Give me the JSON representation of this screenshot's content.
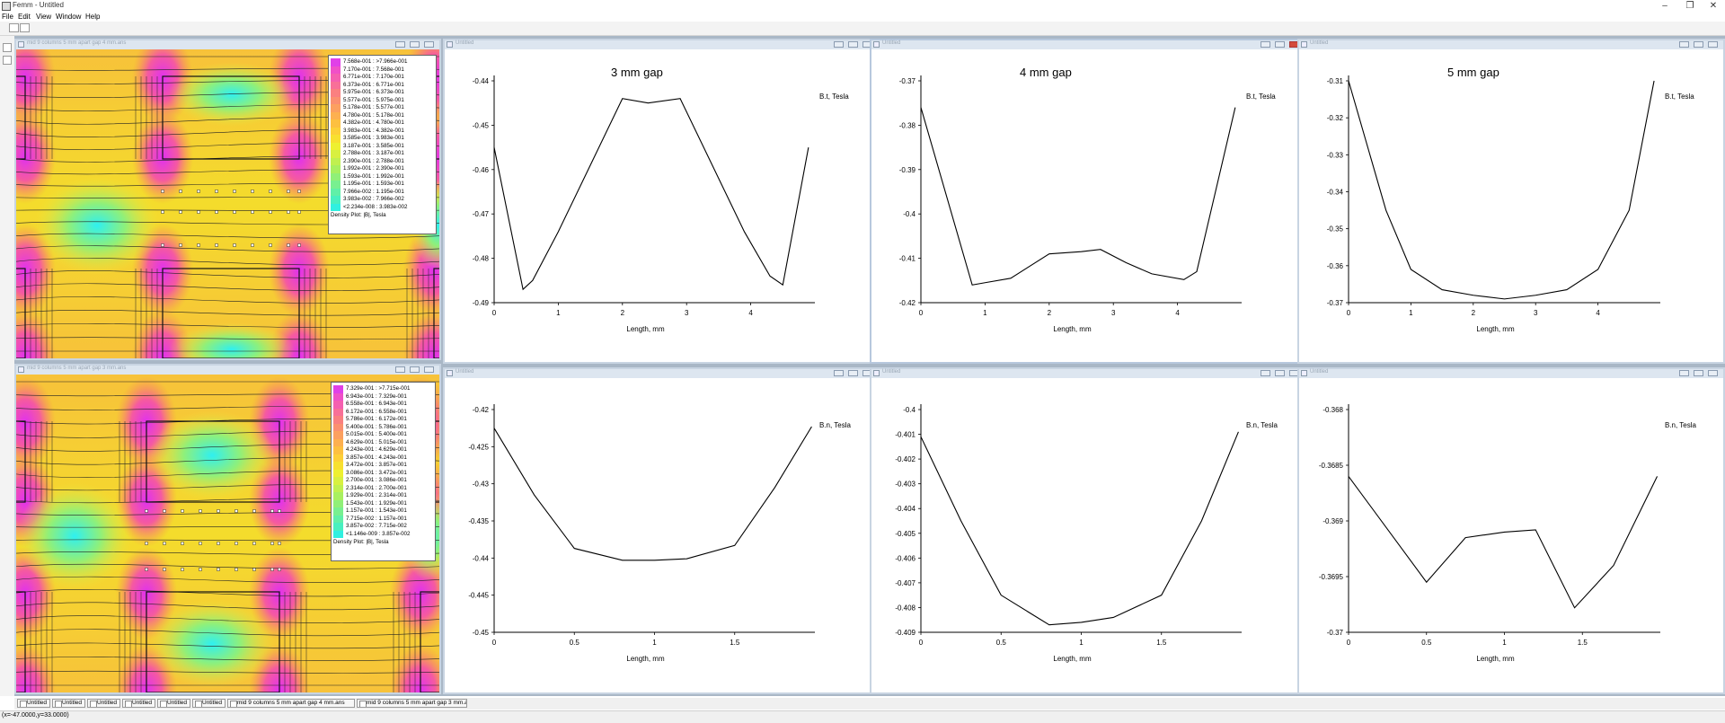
{
  "app": {
    "title": "Femm - Untitled"
  },
  "window_controls": {
    "minimize": "–",
    "maximize": "❐",
    "close": "✕"
  },
  "menu": [
    {
      "id": "file",
      "label": "File"
    },
    {
      "id": "edit",
      "label": "Edit"
    },
    {
      "id": "view",
      "label": "View"
    },
    {
      "id": "window",
      "label": "Window"
    },
    {
      "id": "help",
      "label": "Help"
    }
  ],
  "field_windows": [
    {
      "title": "mid 9 columns 5 mm apart gap 4 mm.ans",
      "legend": {
        "colors": [
          "#e040e8",
          "#f050c8",
          "#f560b0",
          "#f87098",
          "#fa8080",
          "#fb9070",
          "#fca060",
          "#fdb050",
          "#fdc040",
          "#fdd038",
          "#f8e030",
          "#eef030",
          "#d8f040",
          "#c0f050",
          "#a8f060",
          "#90f078",
          "#78f090",
          "#60f0a8",
          "#48f0c0",
          "#30f0e0"
        ],
        "entries": [
          "7.568e-001 : >7.966e-001",
          "7.170e-001 : 7.568e-001",
          "6.771e-001 : 7.170e-001",
          "6.373e-001 : 6.771e-001",
          "5.975e-001 : 6.373e-001",
          "5.577e-001 : 5.975e-001",
          "5.178e-001 : 5.577e-001",
          "4.780e-001 : 5.178e-001",
          "4.382e-001 : 4.780e-001",
          "3.983e-001 : 4.382e-001",
          "3.585e-001 : 3.983e-001",
          "3.187e-001 : 3.585e-001",
          "2.788e-001 : 3.187e-001",
          "2.390e-001 : 2.788e-001",
          "1.992e-001 : 2.390e-001",
          "1.593e-001 : 1.992e-001",
          "1.195e-001 : 1.593e-001",
          "7.966e-002 : 1.195e-001",
          "3.983e-002 : 7.966e-002",
          "<2.234e-008 : 3.983e-002"
        ],
        "title": "Density Plot: |B|, Tesla"
      }
    },
    {
      "title": "mid 9 columns 5 mm apart gap 3 mm.ans",
      "legend": {
        "colors": [
          "#e040e8",
          "#f050c8",
          "#f560b0",
          "#f87098",
          "#fa8080",
          "#fb9070",
          "#fca060",
          "#fdb050",
          "#fdc040",
          "#fdd038",
          "#f8e030",
          "#eef030",
          "#d8f040",
          "#c0f050",
          "#a8f060",
          "#90f078",
          "#78f090",
          "#60f0a8",
          "#48f0c0",
          "#30f0e0"
        ],
        "entries": [
          "7.329e-001 : >7.715e-001",
          "6.943e-001 : 7.329e-001",
          "6.558e-001 : 6.943e-001",
          "6.172e-001 : 6.558e-001",
          "5.786e-001 : 6.172e-001",
          "5.400e-001 : 5.786e-001",
          "5.015e-001 : 5.400e-001",
          "4.629e-001 : 5.015e-001",
          "4.243e-001 : 4.629e-001",
          "3.857e-001 : 4.243e-001",
          "3.472e-001 : 3.857e-001",
          "3.086e-001 : 3.472e-001",
          "2.700e-001 : 3.086e-001",
          "2.314e-001 : 2.700e-001",
          "1.929e-001 : 2.314e-001",
          "1.543e-001 : 1.929e-001",
          "1.157e-001 : 1.543e-001",
          "7.715e-002 : 1.157e-001",
          "3.857e-002 : 7.715e-002",
          "<1.146e-009 : 3.857e-002"
        ],
        "title": "Density Plot: |B|, Tesla"
      }
    }
  ],
  "plot_windows": [
    {
      "title": "Untitled",
      "gap_label": "3 mm gap",
      "ylabel": "B.t, Tesla",
      "xlabel": "Length, mm"
    },
    {
      "title": "Untitled",
      "gap_label": "4 mm gap",
      "ylabel": "B.t, Tesla",
      "xlabel": "Length, mm"
    },
    {
      "title": "Untitled",
      "gap_label": "5 mm gap",
      "ylabel": "B.t, Tesla",
      "xlabel": "Length, mm"
    },
    {
      "title": "Untitled",
      "gap_label": "",
      "ylabel": "B.n, Tesla",
      "xlabel": "Length, mm"
    },
    {
      "title": "Untitled",
      "gap_label": "",
      "ylabel": "B.n, Tesla",
      "xlabel": "Length, mm"
    },
    {
      "title": "Untitled",
      "gap_label": "",
      "ylabel": "B.n, Tesla",
      "xlabel": "Length, mm"
    }
  ],
  "chart_data": [
    {
      "type": "line",
      "title": "3 mm gap",
      "xlabel": "Length, mm",
      "ylabel": "B.t, Tesla",
      "xlim": [
        0,
        5
      ],
      "ylim": [
        -0.49,
        -0.44
      ],
      "xticks": [
        "0",
        "1",
        "2",
        "3",
        "4"
      ],
      "yticks": [
        "-0.44",
        "-0.45",
        "-0.46",
        "-0.47",
        "-0.48",
        "-0.49"
      ],
      "x": [
        0,
        0.45,
        0.6,
        1.0,
        1.5,
        2.0,
        2.4,
        2.9,
        3.4,
        3.9,
        4.3,
        4.5,
        4.9
      ],
      "y": [
        -0.455,
        -0.487,
        -0.485,
        -0.474,
        -0.459,
        -0.444,
        -0.445,
        -0.444,
        -0.459,
        -0.474,
        -0.484,
        -0.486,
        -0.455
      ]
    },
    {
      "type": "line",
      "title": "4 mm gap",
      "xlabel": "Length, mm",
      "ylabel": "B.t, Tesla",
      "xlim": [
        0,
        5
      ],
      "ylim": [
        -0.42,
        -0.37
      ],
      "xticks": [
        "0",
        "1",
        "2",
        "3",
        "4"
      ],
      "yticks": [
        "-0.37",
        "-0.38",
        "-0.39",
        "-0.4",
        "-0.41",
        "-0.42"
      ],
      "x": [
        0,
        0.8,
        1.0,
        1.4,
        2.0,
        2.5,
        2.8,
        3.2,
        3.6,
        4.1,
        4.3,
        4.9
      ],
      "y": [
        -0.376,
        -0.416,
        -0.4155,
        -0.4145,
        -0.409,
        -0.4085,
        -0.408,
        -0.411,
        -0.4135,
        -0.4148,
        -0.413,
        -0.376
      ]
    },
    {
      "type": "line",
      "title": "5 mm gap",
      "xlabel": "Length, mm",
      "ylabel": "B.t, Tesla",
      "xlim": [
        0,
        5
      ],
      "ylim": [
        -0.37,
        -0.31
      ],
      "xticks": [
        "0",
        "1",
        "2",
        "3",
        "4"
      ],
      "yticks": [
        "-0.31",
        "-0.32",
        "-0.33",
        "-0.34",
        "-0.35",
        "-0.36",
        "-0.37"
      ],
      "x": [
        0,
        0.6,
        1.0,
        1.5,
        2.0,
        2.5,
        3.0,
        3.5,
        4.0,
        4.5,
        4.9
      ],
      "y": [
        -0.31,
        -0.345,
        -0.361,
        -0.3665,
        -0.368,
        -0.369,
        -0.368,
        -0.3665,
        -0.361,
        -0.345,
        -0.31
      ]
    },
    {
      "type": "line",
      "xlabel": "Length, mm",
      "ylabel": "B.n, Tesla",
      "xlim": [
        0,
        2
      ],
      "ylim": [
        -0.45,
        -0.42
      ],
      "xticks": [
        "0",
        "0.5",
        "1",
        "1.5"
      ],
      "yticks": [
        "-0.42",
        "-0.425",
        "-0.43",
        "-0.435",
        "-0.44",
        "-0.445",
        "-0.45"
      ],
      "x": [
        0,
        0.25,
        0.5,
        0.8,
        1.0,
        1.2,
        1.5,
        1.75,
        1.98
      ],
      "y": [
        -0.4225,
        -0.4315,
        -0.4387,
        -0.4403,
        -0.4403,
        -0.4401,
        -0.4383,
        -0.4305,
        -0.4223
      ]
    },
    {
      "type": "line",
      "xlabel": "Length, mm",
      "ylabel": "B.n, Tesla",
      "xlim": [
        0,
        2
      ],
      "ylim": [
        -0.409,
        -0.4
      ],
      "xticks": [
        "0",
        "0.5",
        "1",
        "1.5"
      ],
      "yticks": [
        "-0.4",
        "-0.401",
        "-0.402",
        "-0.403",
        "-0.404",
        "-0.405",
        "-0.406",
        "-0.407",
        "-0.408",
        "-0.409"
      ],
      "x": [
        0,
        0.25,
        0.5,
        0.8,
        1.0,
        1.2,
        1.5,
        1.75,
        1.98
      ],
      "y": [
        -0.4011,
        -0.4045,
        -0.4075,
        -0.4087,
        -0.4086,
        -0.4084,
        -0.4075,
        -0.4045,
        -0.4009
      ]
    },
    {
      "type": "line",
      "xlabel": "Length, mm",
      "ylabel": "B.n, Tesla",
      "xlim": [
        0,
        2
      ],
      "ylim": [
        -0.37,
        -0.368
      ],
      "xticks": [
        "0",
        "0.5",
        "1",
        "1.5"
      ],
      "yticks": [
        "-0.368",
        "-0.3685",
        "-0.369",
        "-0.3695",
        "-0.37"
      ],
      "x": [
        0,
        0.5,
        0.75,
        1.0,
        1.2,
        1.45,
        1.7,
        1.98
      ],
      "y": [
        -0.3686,
        -0.36955,
        -0.36915,
        -0.3691,
        -0.36908,
        -0.36978,
        -0.3694,
        -0.3686
      ]
    }
  ],
  "tabs": [
    {
      "label": "Untitled"
    },
    {
      "label": "Untitled"
    },
    {
      "label": "Untitled"
    },
    {
      "label": "Untitled"
    },
    {
      "label": "Untitled"
    },
    {
      "label": "Untitled"
    },
    {
      "label": "mid 9 columns 5 mm apart gap 4 mm.ans"
    },
    {
      "label": "mid 9 columns 5 mm apart gap 3 mm.ans"
    }
  ],
  "status": {
    "coords": "(x=-47.0000,y=33.0000)"
  }
}
